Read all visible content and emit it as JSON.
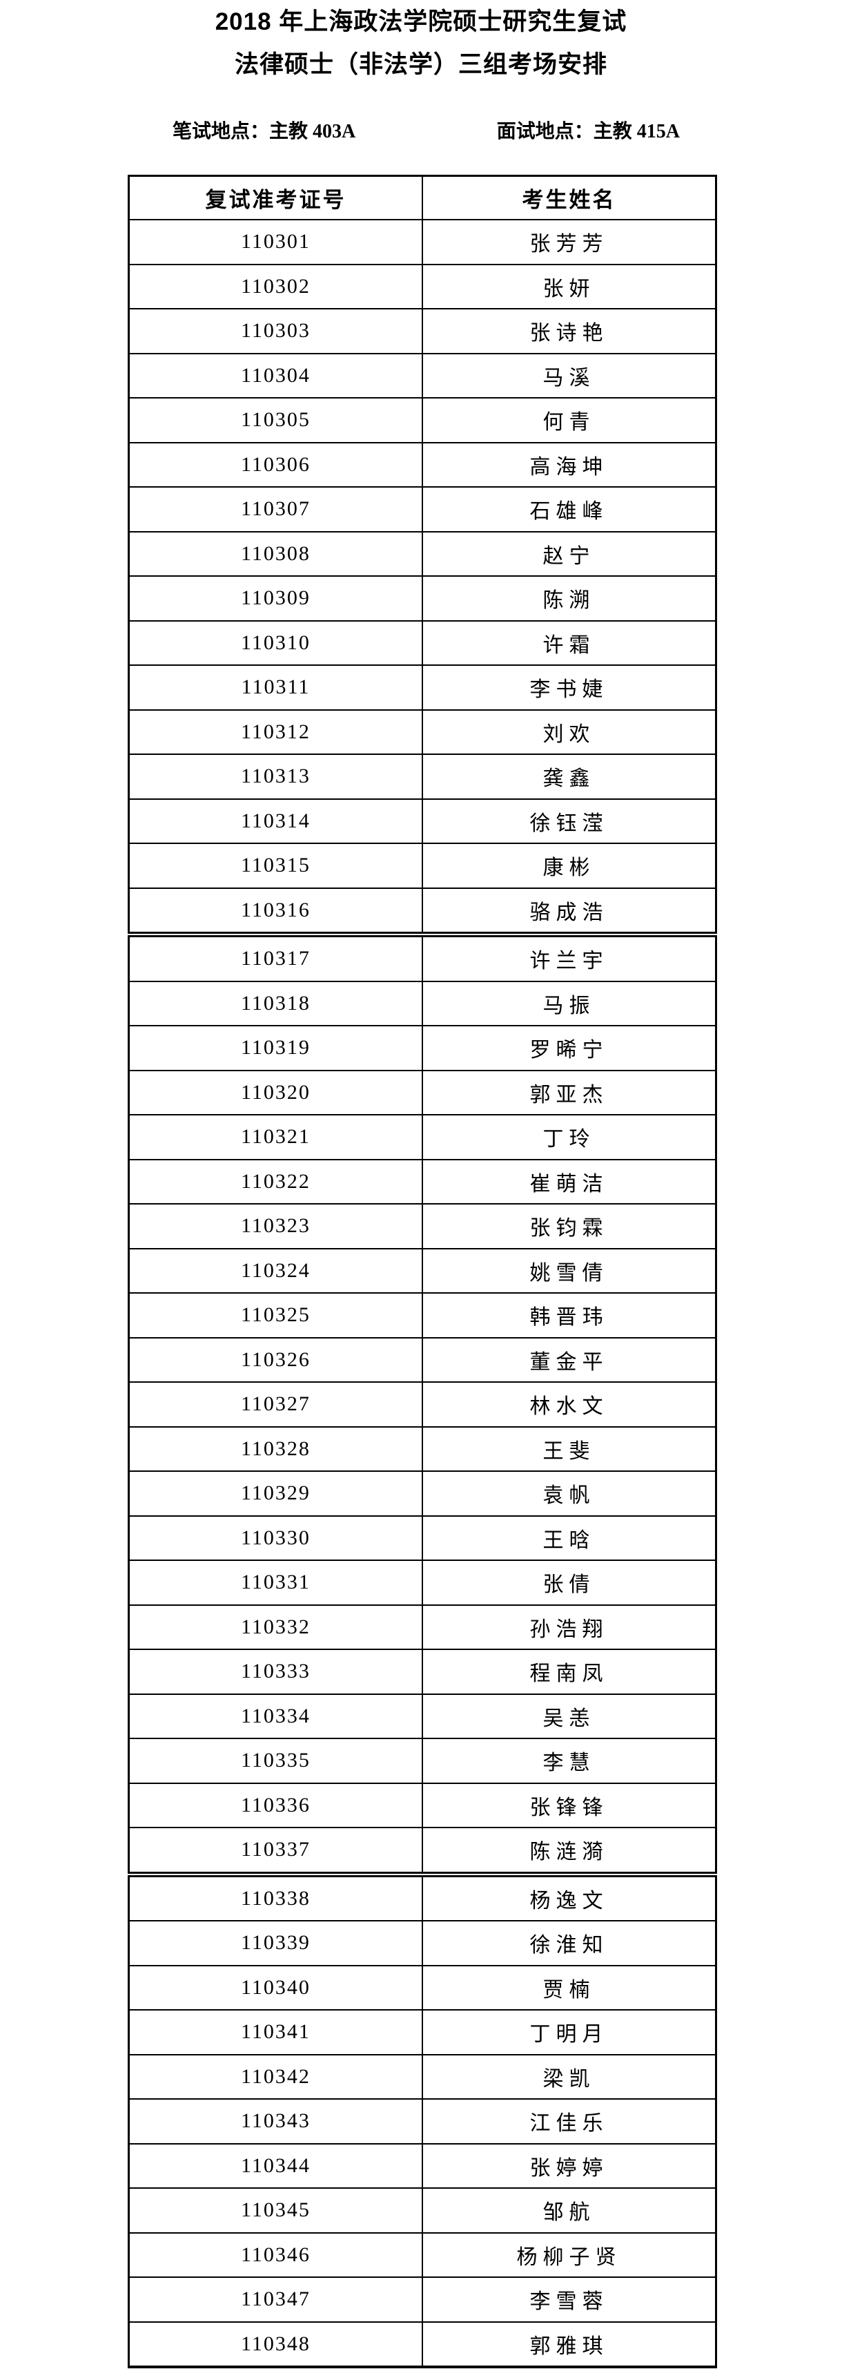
{
  "page": {
    "title_line1": "2018 年上海政法学院硕士研究生复试",
    "title_line2": "法律硕士（非法学）三组考场安排",
    "written_exam_location": "笔试地点：主教 403A",
    "interview_location": "面试地点：主教 415A"
  },
  "table": {
    "columns": [
      "复试准考证号",
      "考生姓名"
    ],
    "section_breaks_after": [
      "110316",
      "110337"
    ],
    "rows": [
      {
        "id": "110301",
        "name": "张芳芳"
      },
      {
        "id": "110302",
        "name": "张妍"
      },
      {
        "id": "110303",
        "name": "张诗艳"
      },
      {
        "id": "110304",
        "name": "马溪"
      },
      {
        "id": "110305",
        "name": "何青"
      },
      {
        "id": "110306",
        "name": "高海坤"
      },
      {
        "id": "110307",
        "name": "石雄峰"
      },
      {
        "id": "110308",
        "name": "赵宁"
      },
      {
        "id": "110309",
        "name": "陈溯"
      },
      {
        "id": "110310",
        "name": "许霜"
      },
      {
        "id": "110311",
        "name": "李书婕"
      },
      {
        "id": "110312",
        "name": "刘欢"
      },
      {
        "id": "110313",
        "name": "龚鑫"
      },
      {
        "id": "110314",
        "name": "徐钰滢"
      },
      {
        "id": "110315",
        "name": "康彬"
      },
      {
        "id": "110316",
        "name": "骆成浩"
      },
      {
        "id": "110317",
        "name": "许兰宇"
      },
      {
        "id": "110318",
        "name": "马振"
      },
      {
        "id": "110319",
        "name": "罗晞宁"
      },
      {
        "id": "110320",
        "name": "郭亚杰"
      },
      {
        "id": "110321",
        "name": "丁玲"
      },
      {
        "id": "110322",
        "name": "崔萌洁"
      },
      {
        "id": "110323",
        "name": "张钧霖"
      },
      {
        "id": "110324",
        "name": "姚雪倩"
      },
      {
        "id": "110325",
        "name": "韩晋玮"
      },
      {
        "id": "110326",
        "name": "董金平"
      },
      {
        "id": "110327",
        "name": "林水文"
      },
      {
        "id": "110328",
        "name": "王斐"
      },
      {
        "id": "110329",
        "name": "袁帆"
      },
      {
        "id": "110330",
        "name": "王晗"
      },
      {
        "id": "110331",
        "name": "张倩"
      },
      {
        "id": "110332",
        "name": "孙浩翔"
      },
      {
        "id": "110333",
        "name": "程南凤"
      },
      {
        "id": "110334",
        "name": "吴恙"
      },
      {
        "id": "110335",
        "name": "李慧"
      },
      {
        "id": "110336",
        "name": "张锋锋"
      },
      {
        "id": "110337",
        "name": "陈涟漪"
      },
      {
        "id": "110338",
        "name": "杨逸文"
      },
      {
        "id": "110339",
        "name": "徐淮知"
      },
      {
        "id": "110340",
        "name": "贾楠"
      },
      {
        "id": "110341",
        "name": "丁明月"
      },
      {
        "id": "110342",
        "name": "梁凯"
      },
      {
        "id": "110343",
        "name": "江佳乐"
      },
      {
        "id": "110344",
        "name": "张婷婷"
      },
      {
        "id": "110345",
        "name": "邹航"
      },
      {
        "id": "110346",
        "name": "杨柳子贤"
      },
      {
        "id": "110347",
        "name": "李雪蓉"
      },
      {
        "id": "110348",
        "name": "郭雅琪"
      }
    ]
  }
}
